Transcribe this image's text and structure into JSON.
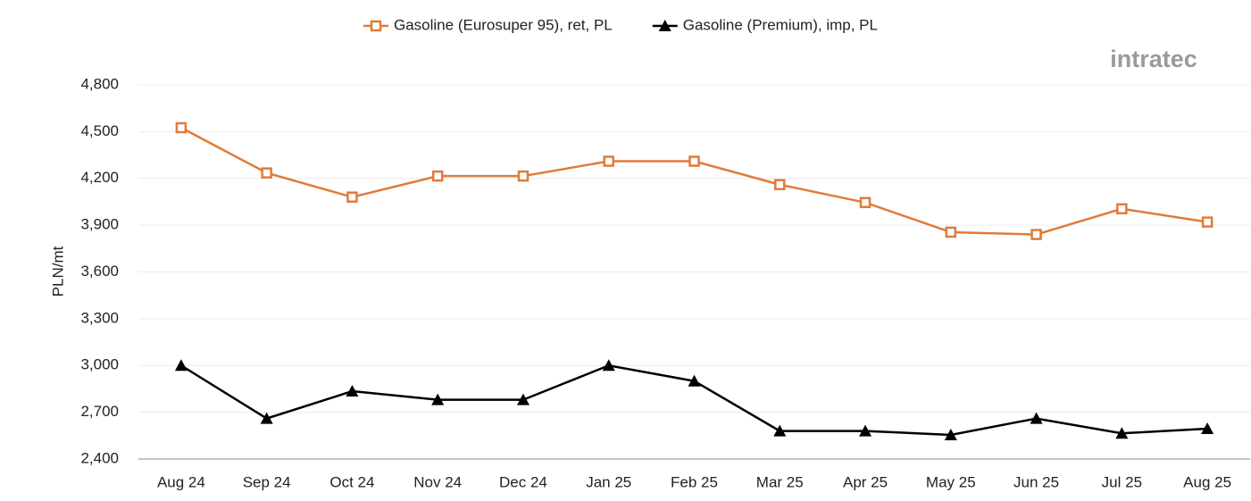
{
  "chart_data": {
    "type": "line",
    "logo": "intratec",
    "y_label": "PLN/mt",
    "categories": [
      "Aug 24",
      "Sep 24",
      "Oct 24",
      "Nov 24",
      "Dec 24",
      "Jan 25",
      "Feb 25",
      "Mar 25",
      "Apr 25",
      "May 25",
      "Jun 25",
      "Jul 25",
      "Aug 25"
    ],
    "series": [
      {
        "name": "Gasoline (Eurosuper 95), ret, PL",
        "color": "#e07b39",
        "marker": "square",
        "values": [
          4525,
          4235,
          4080,
          4215,
          4215,
          4310,
          4310,
          4160,
          4045,
          3855,
          3840,
          4005,
          3920
        ]
      },
      {
        "name": "Gasoline (Premium), imp, PL",
        "color": "#000000",
        "marker": "triangle",
        "values": [
          3000,
          2660,
          2835,
          2780,
          2780,
          3000,
          2900,
          2580,
          2580,
          2555,
          2660,
          2565,
          2595
        ]
      }
    ],
    "ylim": [
      2400,
      4800
    ],
    "yticks": [
      {
        "value": 2400,
        "label": "2,400"
      },
      {
        "value": 2700,
        "label": "2,700"
      },
      {
        "value": 3000,
        "label": "3,000"
      },
      {
        "value": 3300,
        "label": "3,300"
      },
      {
        "value": 3600,
        "label": "3,600"
      },
      {
        "value": 3900,
        "label": "3,900"
      },
      {
        "value": 4200,
        "label": "4,200"
      },
      {
        "value": 4500,
        "label": "4,500"
      },
      {
        "value": 4800,
        "label": "4,800"
      }
    ],
    "grid": true,
    "legend": "top"
  }
}
